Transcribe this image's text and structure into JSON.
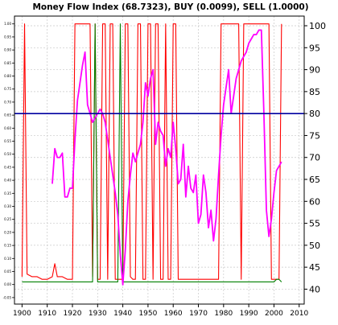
{
  "chart_data": {
    "type": "line",
    "title": "Money Flow Index (68.7323), BUY (0.0099), SELL (1.0000)",
    "xlabel": "",
    "ylabel": "",
    "xlim": [
      1897,
      2012
    ],
    "x_ticks": [
      1900,
      1910,
      1920,
      1930,
      1940,
      1950,
      1960,
      1970,
      1980,
      1990,
      2000,
      2010
    ],
    "left_axis": {
      "ylim": [
        -0.075,
        1.03
      ],
      "ticks": [
        -0.05,
        0.0,
        0.05,
        0.1,
        0.15,
        0.2,
        0.25,
        0.3,
        0.35,
        0.4,
        0.45,
        0.5,
        0.55,
        0.6,
        0.65,
        0.7,
        0.75,
        0.8,
        0.85,
        0.9,
        0.95,
        1.0
      ],
      "tick_labels": [
        "-0.05",
        "0.00",
        "0.05",
        "0.10",
        "0.15",
        "0.20",
        "0.25",
        "0.30",
        "0.35",
        "0.40",
        "0.45",
        "0.50",
        "0.55",
        "0.60",
        "0.65",
        "0.70",
        "0.75",
        "0.80",
        "0.85",
        "0.90",
        "0.95",
        "1.00"
      ]
    },
    "right_axis": {
      "ylim": [
        36.6,
        102.2
      ],
      "ticks": [
        40,
        45,
        50,
        55,
        60,
        65,
        70,
        75,
        80,
        85,
        90,
        95,
        100
      ],
      "tick_labels": [
        "40",
        "45",
        "50",
        "55",
        "60",
        "65",
        "70",
        "75",
        "80",
        "85",
        "90",
        "95",
        "100"
      ]
    },
    "grid": true,
    "reference_line": {
      "axis": "right",
      "value": 80,
      "color": "#0000a0"
    },
    "colors": {
      "sell": "#ff0000",
      "buy": "#008000",
      "mfi": "#ff00ff"
    },
    "series": [
      {
        "axis": "left",
        "color": "#ff0000",
        "x": [
          1900,
          1901,
          1902,
          1904,
          1906,
          1908,
          1910,
          1912,
          1913,
          1914,
          1916,
          1918,
          1920,
          1921,
          1922,
          1924,
          1926,
          1927,
          1928,
          1929,
          1930,
          1931,
          1932,
          1933,
          1934,
          1935,
          1936,
          1937,
          1938,
          1939,
          1940,
          1941,
          1942,
          1943,
          1944,
          1945,
          1946,
          1947,
          1948,
          1949,
          1950,
          1951,
          1952,
          1953,
          1954,
          1955,
          1956,
          1957,
          1958,
          1959,
          1960,
          1961,
          1962,
          1963,
          1964,
          1966,
          1968,
          1970,
          1972,
          1974,
          1976,
          1978,
          1979,
          1980,
          1981,
          1982,
          1984,
          1986,
          1987,
          1988,
          1989,
          1990,
          1991,
          1992,
          1994,
          1996,
          1997,
          1998,
          1999,
          2000,
          2002,
          2003
        ],
        "values": [
          0.03,
          1.0,
          0.04,
          0.03,
          0.03,
          0.02,
          0.02,
          0.03,
          0.08,
          0.03,
          0.03,
          0.02,
          0.02,
          1.0,
          1.0,
          1.0,
          1.0,
          1.0,
          0.03,
          1.0,
          0.02,
          0.02,
          1.0,
          1.0,
          0.02,
          1.0,
          1.0,
          0.02,
          0.02,
          0.02,
          0.02,
          1.0,
          1.0,
          0.03,
          0.02,
          0.02,
          1.0,
          1.0,
          0.02,
          0.02,
          1.0,
          1.0,
          0.02,
          1.0,
          1.0,
          0.02,
          0.02,
          1.0,
          0.02,
          0.02,
          1.0,
          1.0,
          0.02,
          0.02,
          0.02,
          0.02,
          0.02,
          0.02,
          0.02,
          0.02,
          0.02,
          0.02,
          1.0,
          1.0,
          1.0,
          1.0,
          1.0,
          1.0,
          0.02,
          1.0,
          1.0,
          1.0,
          1.0,
          1.0,
          1.0,
          1.0,
          1.0,
          1.0,
          0.02,
          0.02,
          0.02,
          1.0
        ]
      },
      {
        "axis": "left",
        "color": "#008000",
        "x": [
          1900,
          1910,
          1920,
          1928,
          1929,
          1930,
          1931,
          1938,
          1939,
          1940,
          1941,
          1950,
          1960,
          1970,
          1980,
          1990,
          2000,
          2001,
          2002,
          2003
        ],
        "values": [
          0.01,
          0.01,
          0.01,
          0.01,
          1.0,
          0.01,
          0.01,
          0.01,
          1.0,
          0.01,
          0.01,
          0.01,
          0.01,
          0.01,
          0.01,
          0.01,
          0.01,
          0.02,
          0.02,
          0.01
        ]
      },
      {
        "axis": "right",
        "color": "#ff00ff",
        "x": [
          1912,
          1913,
          1914,
          1915,
          1916,
          1917,
          1918,
          1919,
          1920,
          1921,
          1922,
          1923,
          1924,
          1925,
          1926,
          1927,
          1928,
          1929,
          1930,
          1931,
          1932,
          1933,
          1934,
          1935,
          1936,
          1937,
          1938,
          1939,
          1940,
          1941,
          1942,
          1943,
          1944,
          1945,
          1946,
          1947,
          1948,
          1949,
          1950,
          1951,
          1952,
          1953,
          1954,
          1955,
          1956,
          1957,
          1958,
          1959,
          1960,
          1961,
          1962,
          1963,
          1964,
          1965,
          1966,
          1967,
          1968,
          1969,
          1970,
          1971,
          1972,
          1973,
          1974,
          1975,
          1976,
          1977,
          1978,
          1979,
          1980,
          1981,
          1982,
          1983,
          1984,
          1985,
          1986,
          1987,
          1988,
          1989,
          1990,
          1991,
          1992,
          1993,
          1994,
          1995,
          1996,
          1997,
          1998,
          1999,
          2000,
          2001,
          2002,
          2003
        ],
        "values": [
          64,
          72,
          70,
          70,
          71,
          61,
          61,
          63,
          63,
          74,
          83,
          87,
          91,
          94,
          82,
          80,
          78,
          79,
          80,
          81,
          80,
          78,
          74,
          70,
          66,
          62,
          57,
          48,
          41,
          49,
          60,
          66,
          71,
          69,
          71,
          73,
          78,
          87,
          84,
          88,
          90,
          73,
          78,
          76,
          75,
          68,
          72,
          70,
          78,
          72,
          64,
          65,
          73,
          61,
          68,
          63,
          62,
          66,
          55,
          57,
          66,
          62,
          54,
          58,
          51,
          56,
          66,
          75,
          82,
          86,
          90,
          80,
          84,
          88,
          90,
          92,
          93,
          94,
          96,
          97,
          98,
          98,
          99,
          99,
          80,
          58,
          52,
          56,
          62,
          67,
          68,
          69
        ]
      }
    ]
  }
}
